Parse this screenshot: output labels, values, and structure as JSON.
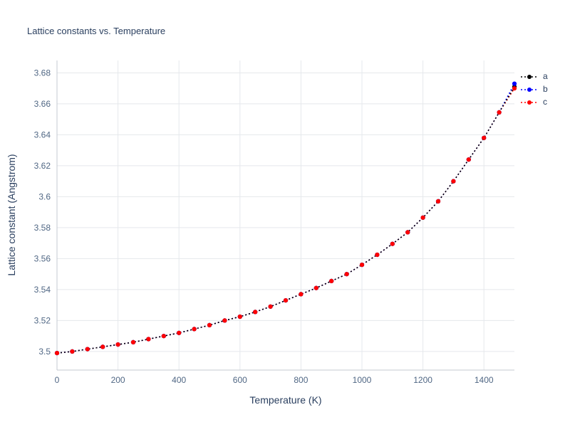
{
  "chart_data": {
    "type": "line",
    "title": "Lattice constants vs. Temperature",
    "xlabel": "Temperature (K)",
    "ylabel": "Lattice constant (Angstrom)",
    "xlim": [
      0,
      1500
    ],
    "ylim": [
      3.488,
      3.688
    ],
    "x_ticks": [
      0,
      200,
      400,
      600,
      800,
      1000,
      1200,
      1400
    ],
    "y_ticks": [
      3.5,
      3.52,
      3.54,
      3.56,
      3.58,
      3.6,
      3.62,
      3.64,
      3.66,
      3.68
    ],
    "grid": true,
    "legend_position": "outside-top-right",
    "line_style": "dotted",
    "marker": "circle",
    "colors": {
      "title_text": "#2a3f5f",
      "tick_text": "#506784",
      "gridline": "#e5e8ec",
      "axis_line": "#c4cad1",
      "background": "#ffffff"
    },
    "x": [
      0,
      50,
      100,
      150,
      200,
      250,
      300,
      350,
      400,
      450,
      500,
      550,
      600,
      650,
      700,
      750,
      800,
      850,
      900,
      950,
      1000,
      1050,
      1100,
      1150,
      1200,
      1250,
      1300,
      1350,
      1400,
      1450,
      1500
    ],
    "series": [
      {
        "name": "a",
        "color": "#000000",
        "values": [
          3.499,
          3.5,
          3.5015,
          3.503,
          3.5045,
          3.506,
          3.508,
          3.51,
          3.512,
          3.5145,
          3.517,
          3.52,
          3.5225,
          3.5255,
          3.529,
          3.533,
          3.537,
          3.541,
          3.5455,
          3.55,
          3.556,
          3.5625,
          3.5695,
          3.577,
          3.5865,
          3.597,
          3.61,
          3.624,
          3.638,
          3.6545,
          3.671
        ]
      },
      {
        "name": "b",
        "color": "#0000ff",
        "values": [
          3.499,
          3.5,
          3.5015,
          3.503,
          3.5045,
          3.506,
          3.508,
          3.51,
          3.512,
          3.5145,
          3.517,
          3.52,
          3.5225,
          3.5255,
          3.529,
          3.533,
          3.537,
          3.541,
          3.5455,
          3.55,
          3.556,
          3.5625,
          3.5695,
          3.577,
          3.5865,
          3.597,
          3.61,
          3.624,
          3.638,
          3.6545,
          3.673
        ]
      },
      {
        "name": "c",
        "color": "#ff0000",
        "values": [
          3.499,
          3.5,
          3.5015,
          3.503,
          3.5045,
          3.506,
          3.508,
          3.51,
          3.512,
          3.5145,
          3.517,
          3.52,
          3.5225,
          3.5255,
          3.529,
          3.533,
          3.537,
          3.541,
          3.5455,
          3.55,
          3.556,
          3.5625,
          3.5695,
          3.577,
          3.5865,
          3.597,
          3.61,
          3.624,
          3.638,
          3.6545,
          3.67
        ]
      }
    ]
  }
}
